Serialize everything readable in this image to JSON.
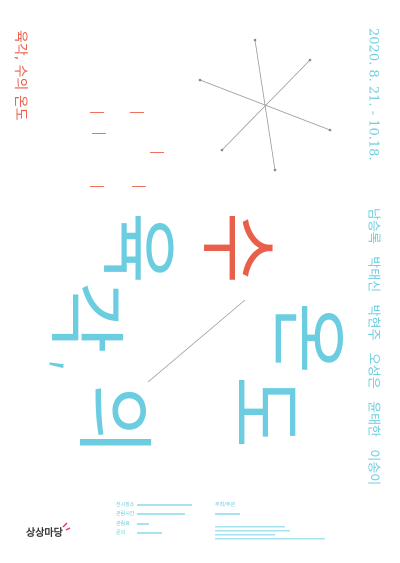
{
  "poster": {
    "title": "육각, 수의 온도",
    "dates": "2020. 8. 21. - 10.18.",
    "artists": "남승록   박태신   박현주   오성은   윤태한   이송이",
    "big_letters": [
      "육",
      "각,",
      "의",
      "수",
      "온",
      "도"
    ],
    "logo": "상상마당",
    "info_labels": [
      "전시장소",
      "관람시간",
      "관람료",
      "문의"
    ],
    "organizer_label": "주최/주관"
  }
}
